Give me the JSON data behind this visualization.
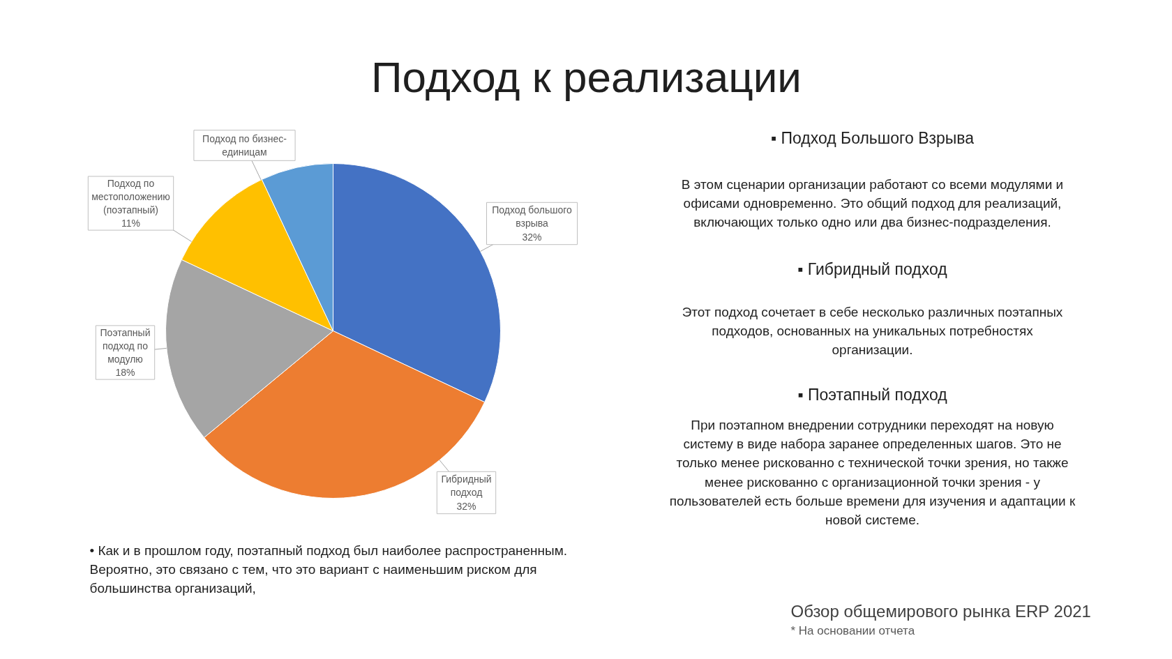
{
  "chart_data": {
    "type": "pie",
    "title": "Подход к реализации",
    "categories": [
      "Подход большого взрыва",
      "Гибридный подход",
      "Поэтапный подход по модулю",
      "Подход по местоположению (поэтапный)",
      "Подход по бизнес-единицам"
    ],
    "values": [
      32,
      32,
      18,
      11,
      7
    ],
    "value_labels": [
      "32%",
      "32%",
      "18%",
      "11%",
      null
    ],
    "colors": [
      "#4472c4",
      "#ed7d31",
      "#a5a5a5",
      "#ffc000",
      "#5b9bd5"
    ],
    "annotations": [
      "▪ Подход Большого Взрыва",
      "В этом сценарии организации работают со всеми модулями и офисами одновременно. Это общий подход для реализаций, включающих только одно или два бизнес-подразделения.",
      "▪ Гибридный подход",
      "Этот подход сочетает в себе несколько различных поэтапных подходов, основанных на уникальных потребностях организации.",
      "▪ Поэтапный подход",
      "При поэтапном внедрении сотрудники переходят на новую систему в виде набора заранее определенных шагов. Это не только менее рискованно с технической точки зрения, но также менее рискованно с организационной точки зрения - у пользователей есть больше времени для изучения и адаптации к новой системе.",
      "• Как и в прошлом году, поэтапный подход был наиболее распространенным. Вероятно, это связано с тем, что это вариант с наименьшим риском для большинства организаций,",
      "Обзор общемирового рынка ERP 2021",
      "* На основании отчета"
    ]
  }
}
